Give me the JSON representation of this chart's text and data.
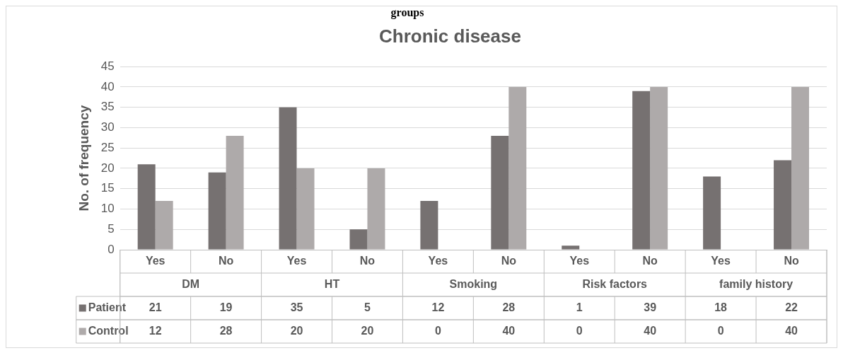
{
  "chart_data": {
    "type": "bar",
    "title": "Chronic disease",
    "ylabel": "No. of frequency",
    "categories": [
      "Yes",
      "No",
      "Yes",
      "No",
      "Yes",
      "No",
      "Yes",
      "No",
      "Yes",
      "No"
    ],
    "series": [
      {
        "name": "Patient",
        "color": "#767171",
        "values": [
          21,
          19,
          35,
          5,
          12,
          28,
          1,
          39,
          18,
          22
        ]
      },
      {
        "name": "Control",
        "color": "#aeaaaa",
        "values": [
          12,
          28,
          20,
          20,
          0,
          40,
          0,
          40,
          0,
          40
        ]
      }
    ],
    "annotations": [
      "groups",
      "DM",
      "HT",
      "Smoking",
      "Risk factors",
      "family history"
    ],
    "ylim": [
      0,
      45
    ],
    "yticks": [
      0,
      5,
      10,
      15,
      20,
      25,
      30,
      35,
      40,
      45
    ],
    "grid": "y",
    "legend": "bottom",
    "data_labels": true
  }
}
